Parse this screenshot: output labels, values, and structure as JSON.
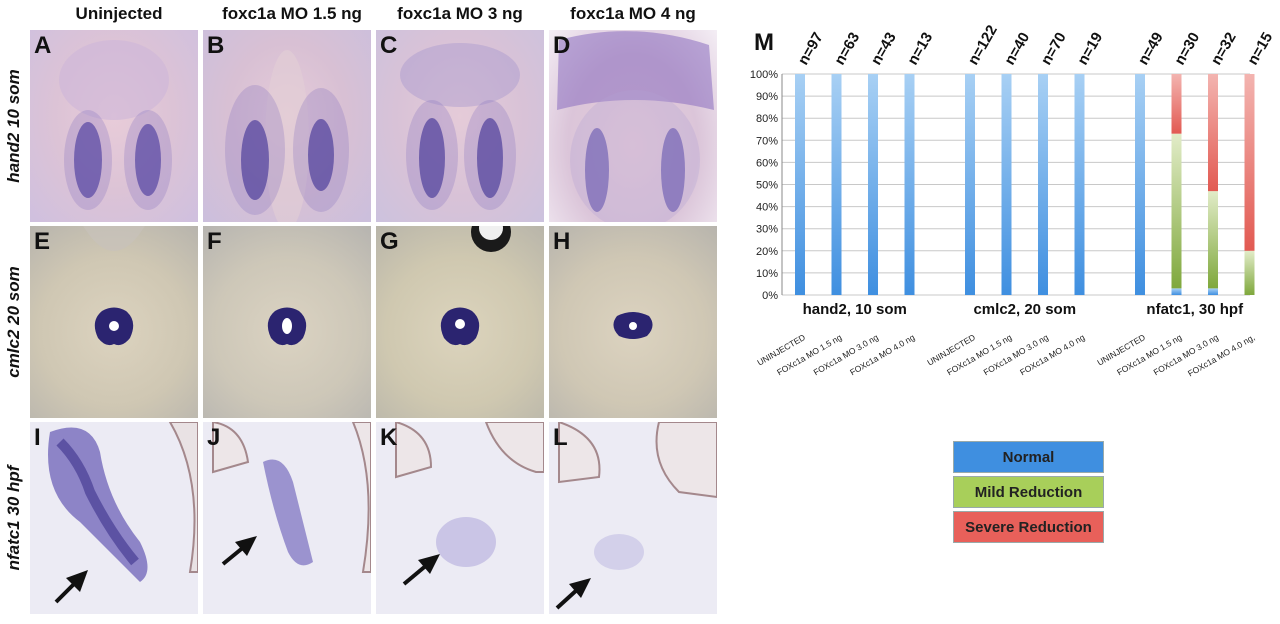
{
  "columns": [
    "Uninjected",
    "foxc1a MO 1.5 ng",
    "foxc1a MO 3 ng",
    "foxc1a MO  4 ng"
  ],
  "rows": [
    "hand2  10 som",
    "cmlc2  20 som",
    "nfatc1  30 hpf"
  ],
  "panel_letters": [
    "A",
    "B",
    "C",
    "D",
    "E",
    "F",
    "G",
    "H",
    "I",
    "J",
    "K",
    "L"
  ],
  "chart_data": {
    "type": "bar",
    "stacked": true,
    "panel_label": "M",
    "yticks": [
      "0%",
      "10%",
      "20%",
      "30%",
      "40%",
      "50%",
      "60%",
      "70%",
      "80%",
      "90%",
      "100%"
    ],
    "ylim": [
      0,
      100
    ],
    "categories": [
      "UNINJECTED",
      "FOXc1a MO 1.5 ng",
      "FOXc1a MO 3.0 ng",
      "FOXc1a MO 4.0 ng"
    ],
    "groups": [
      {
        "name": "hand2, 10 som",
        "counts": [
          "n=97",
          "n=63",
          "n=43",
          "n=13"
        ],
        "categories": [
          "UNINJECTED",
          "FOXc1a MO 1.5 ng",
          "FOXc1a MO 3.0 ng",
          "FOXc1a MO 4.0 ng"
        ],
        "normal": [
          100,
          100,
          100,
          100
        ],
        "mild": [
          0,
          0,
          0,
          0
        ],
        "severe": [
          0,
          0,
          0,
          0
        ]
      },
      {
        "name": "cmlc2, 20 som",
        "counts": [
          "n=122",
          "n=40",
          "n=70",
          "n=19"
        ],
        "categories": [
          "UNINJECTED",
          "FOXc1a MO 1.5 ng",
          "FOXc1a MO 3.0 ng",
          "FOXc1a MO 4.0 ng"
        ],
        "normal": [
          100,
          100,
          100,
          100
        ],
        "mild": [
          0,
          0,
          0,
          0
        ],
        "severe": [
          0,
          0,
          0,
          0
        ]
      },
      {
        "name": "nfatc1, 30 hpf",
        "counts": [
          "n=49",
          "n=30",
          "n=32",
          "n=15"
        ],
        "categories": [
          "UNINJECTED",
          "FOXc1a MO 1.5 ng",
          "FOXc1a MO 3.0 ng",
          "FOXc1a MO 4.0 ng,"
        ],
        "normal": [
          100,
          3,
          3,
          0
        ],
        "mild": [
          0,
          70,
          44,
          20
        ],
        "severe": [
          0,
          27,
          53,
          80
        ]
      }
    ],
    "legend": [
      "Normal",
      "Mild Reduction",
      "Severe Reduction"
    ],
    "colors": {
      "normal": "#3f8fe0",
      "mild": "#a8cf5a",
      "severe": "#e8605a"
    }
  }
}
